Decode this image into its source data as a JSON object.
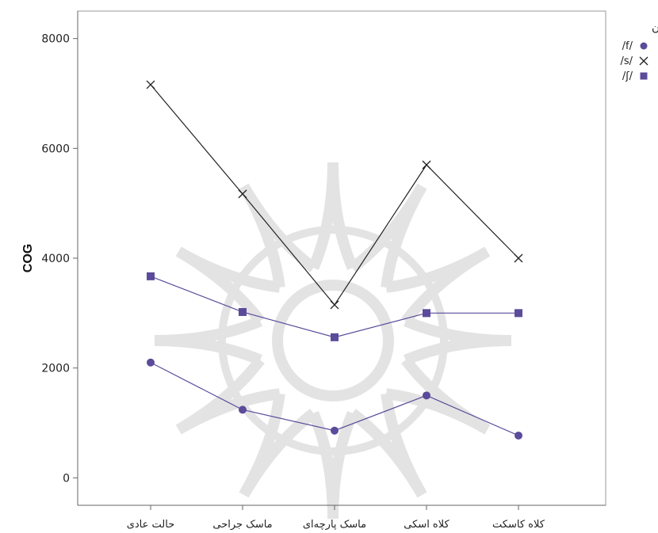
{
  "chart_data": {
    "type": "line",
    "title": "",
    "xlabel": "",
    "ylabel": "COG",
    "categories": [
      "حالت عادی",
      "ماسک جراحی",
      "ماسک پارچه‌ای",
      "کلاه اسکی",
      "کلاه کاسکت"
    ],
    "ylim": [
      -500,
      8500
    ],
    "yticks": [
      0,
      2000,
      4000,
      6000,
      8000
    ],
    "grid": false,
    "legend": {
      "title": "همخوان",
      "position": "top-right"
    },
    "series": [
      {
        "name": "/f/",
        "marker": "circle",
        "color": "#5b4b9a",
        "line_color": "#5b4b9a",
        "values": [
          2100,
          1240,
          860,
          1500,
          770
        ]
      },
      {
        "name": "/s/",
        "marker": "cross",
        "color": "#222222",
        "line_color": "#222222",
        "values": [
          7160,
          5170,
          3150,
          5700,
          4000
        ]
      },
      {
        "name": "/ʃ/",
        "marker": "square",
        "color": "#5b4b9a",
        "line_color": "#5b4b9a",
        "values": [
          3670,
          3020,
          2560,
          3000,
          3000
        ]
      }
    ]
  }
}
